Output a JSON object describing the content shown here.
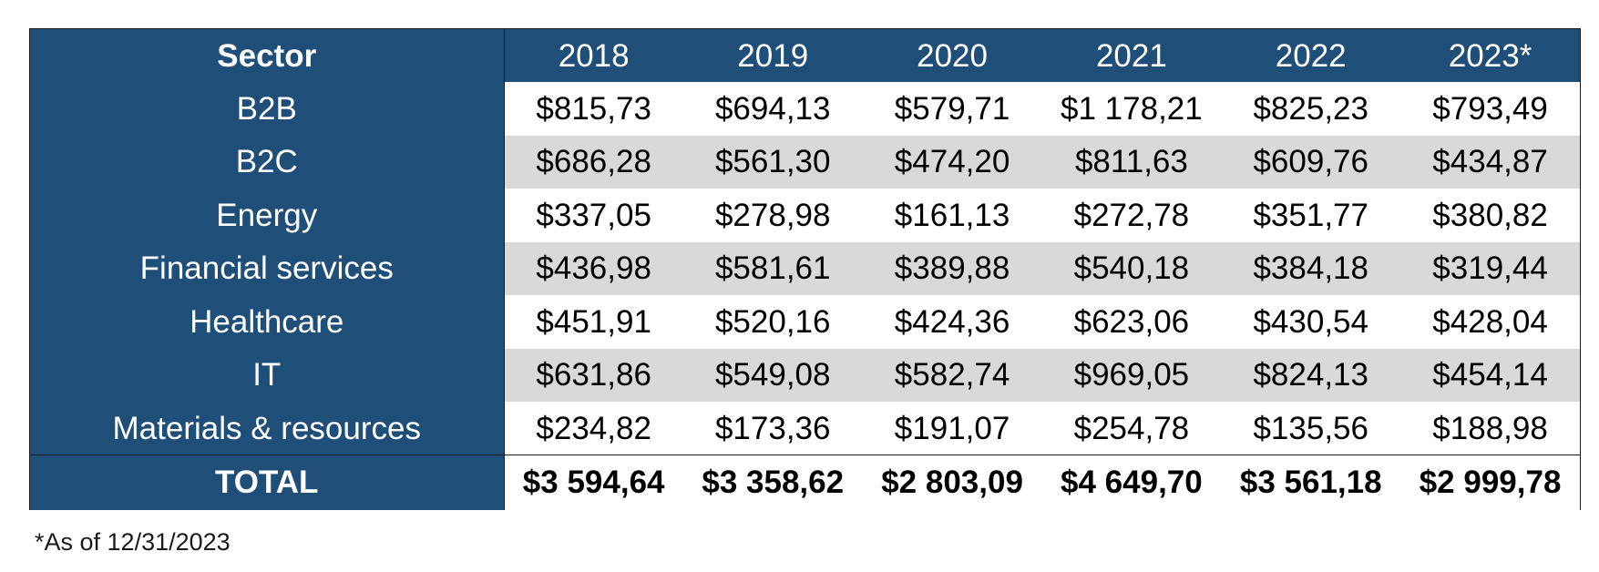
{
  "chart_data": {
    "type": "table",
    "columns": [
      "Sector",
      "2018",
      "2019",
      "2020",
      "2021",
      "2022",
      "2023*"
    ],
    "rows": [
      {
        "sector": "B2B",
        "values": [
          "$815,73",
          "$694,13",
          "$579,71",
          "$1 178,21",
          "$825,23",
          "$793,49"
        ]
      },
      {
        "sector": "B2C",
        "values": [
          "$686,28",
          "$561,30",
          "$474,20",
          "$811,63",
          "$609,76",
          "$434,87"
        ]
      },
      {
        "sector": "Energy",
        "values": [
          "$337,05",
          "$278,98",
          "$161,13",
          "$272,78",
          "$351,77",
          "$380,82"
        ]
      },
      {
        "sector": "Financial services",
        "values": [
          "$436,98",
          "$581,61",
          "$389,88",
          "$540,18",
          "$384,18",
          "$319,44"
        ]
      },
      {
        "sector": "Healthcare",
        "values": [
          "$451,91",
          "$520,16",
          "$424,36",
          "$623,06",
          "$430,54",
          "$428,04"
        ]
      },
      {
        "sector": "IT",
        "values": [
          "$631,86",
          "$549,08",
          "$582,74",
          "$969,05",
          "$824,13",
          "$454,14"
        ]
      },
      {
        "sector": "Materials & resources",
        "values": [
          "$234,82",
          "$173,36",
          "$191,07",
          "$254,78",
          "$135,56",
          "$188,98"
        ]
      }
    ],
    "total": {
      "label": "TOTAL",
      "values": [
        "$3 594,64",
        "$3 358,62",
        "$2 803,09",
        "$4 649,70",
        "$3 561,18",
        "$2 999,78"
      ]
    },
    "footnote": "*As of 12/31/2023"
  },
  "colors": {
    "header_bg": "#1f4e79",
    "header_text": "#ffffff",
    "shaded_row_bg": "#d9d9d9",
    "body_text": "#000000"
  }
}
